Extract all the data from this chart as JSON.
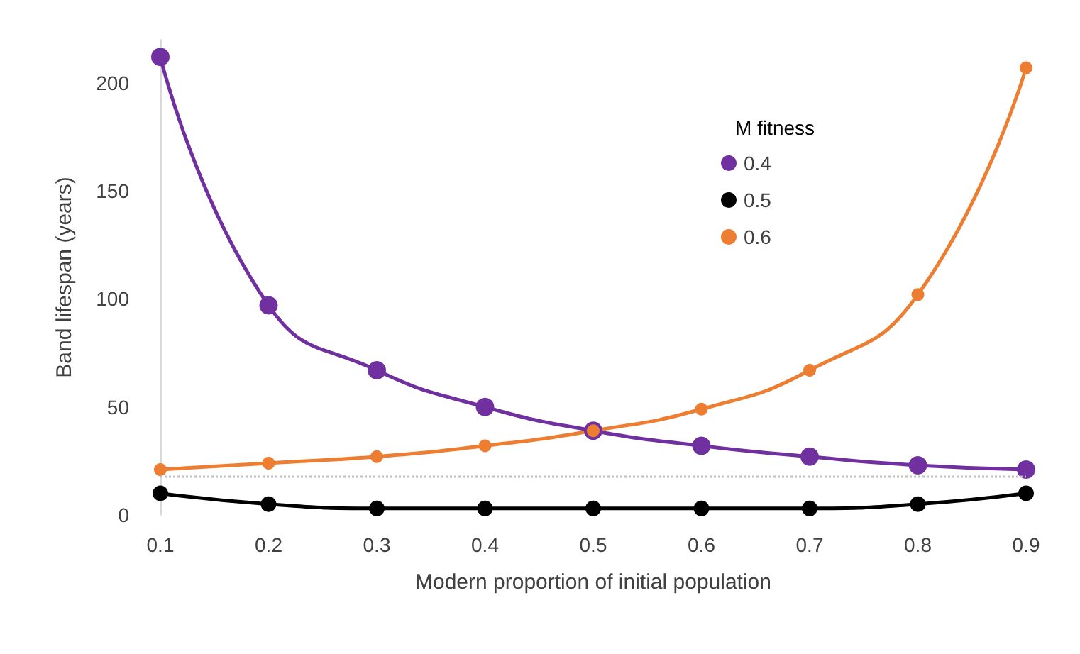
{
  "chart_data": {
    "type": "line",
    "xlabel": "Modern proportion of initial population",
    "ylabel": "Band lifespan (years)",
    "legend_title": "M fitness",
    "x": [
      0.1,
      0.2,
      0.3,
      0.4,
      0.5,
      0.6,
      0.7,
      0.8,
      0.9
    ],
    "series": [
      {
        "name": "0.4",
        "color": "#7030a0",
        "values": [
          212,
          97,
          67,
          50,
          39,
          32,
          27,
          23,
          21
        ]
      },
      {
        "name": "0.5",
        "color": "#000000",
        "values": [
          10,
          5,
          3,
          3,
          3,
          3,
          3,
          5,
          10
        ]
      },
      {
        "name": "0.6",
        "color": "#ed7d31",
        "values": [
          21,
          24,
          27,
          32,
          39,
          49,
          67,
          102,
          207
        ]
      }
    ],
    "xlim": [
      0.1,
      0.9
    ],
    "xticks": [
      0.1,
      0.2,
      0.3,
      0.4,
      0.5,
      0.6,
      0.7,
      0.8,
      0.9
    ],
    "ylim": [
      0,
      220
    ],
    "yticks": [
      0,
      50,
      100,
      150,
      200
    ],
    "ref_lines": [
      {
        "axis": "y",
        "value": 18,
        "color": "#bfbfbf",
        "line_style": "dotted"
      }
    ],
    "grid": false,
    "legend": "top right",
    "marker": "circle",
    "line_style": "solid"
  }
}
